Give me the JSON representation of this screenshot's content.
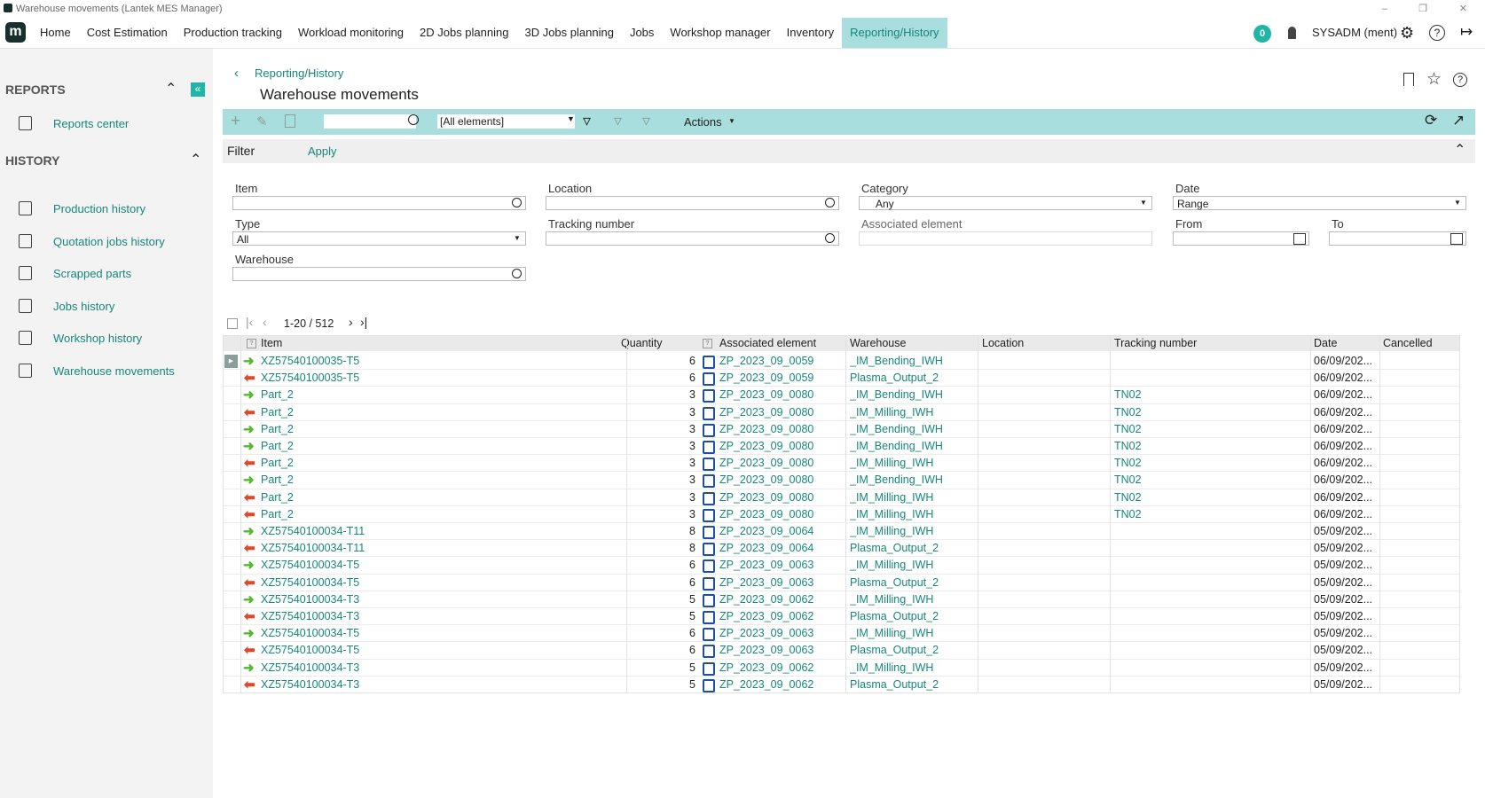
{
  "window": {
    "title": "Warehouse movements (Lantek MES Manager)"
  },
  "menu": {
    "logo": "m",
    "items": [
      "Home",
      "Cost Estimation",
      "Production tracking",
      "Workload monitoring",
      "2D Jobs planning",
      "3D Jobs planning",
      "Jobs",
      "Workshop manager",
      "Inventory",
      "Reporting/History"
    ],
    "notifications": 0,
    "user": "SYSADM (ment)"
  },
  "sidebar": {
    "reports": {
      "heading": "REPORTS",
      "items": [
        "Reports center"
      ]
    },
    "history": {
      "heading": "HISTORY",
      "items": [
        "Production history",
        "Quotation jobs history",
        "Scrapped parts",
        "Jobs history",
        "Workshop history",
        "Warehouse movements"
      ]
    }
  },
  "header": {
    "breadcrumb": "Reporting/History",
    "title": "Warehouse movements"
  },
  "toolbar": {
    "scope": "[All elements]",
    "actions": "Actions"
  },
  "filter": {
    "title": "Filter",
    "apply": "Apply",
    "fields": [
      {
        "label": "Item"
      },
      {
        "label": "Location"
      },
      {
        "label": "Category",
        "value": "Any"
      },
      {
        "label": "Date",
        "value": "Range"
      },
      {
        "label": "Type",
        "value": "All"
      },
      {
        "label": "Tracking number"
      },
      {
        "label": "Associated element"
      },
      {
        "label": "From"
      },
      {
        "label": "To"
      },
      {
        "label": "Warehouse"
      }
    ]
  },
  "pager": "1-20 / 512",
  "table": {
    "columns": [
      "Item",
      "Quantity",
      "Associated element",
      "Warehouse",
      "Location",
      "Tracking number",
      "Date",
      "Cancelled"
    ],
    "rows": [
      {
        "direction": "in",
        "cells": [
          "XZ57540100035-T5",
          6,
          "ZP_2023_09_0059",
          "_IM_Bending_IWH",
          null,
          null,
          "06/09/202...",
          null
        ]
      },
      {
        "direction": "out",
        "cells": [
          "XZ57540100035-T5",
          6,
          "ZP_2023_09_0059",
          "Plasma_Output_2",
          null,
          null,
          "06/09/202...",
          null
        ]
      },
      {
        "direction": "in",
        "cells": [
          "Part_2",
          3,
          "ZP_2023_09_0080",
          "_IM_Bending_IWH",
          null,
          "TN02",
          "06/09/202...",
          null
        ]
      },
      {
        "direction": "out",
        "cells": [
          "Part_2",
          3,
          "ZP_2023_09_0080",
          "_IM_Milling_IWH",
          null,
          "TN02",
          "06/09/202...",
          null
        ]
      },
      {
        "direction": "in",
        "cells": [
          "Part_2",
          3,
          "ZP_2023_09_0080",
          "_IM_Bending_IWH",
          null,
          "TN02",
          "06/09/202...",
          null
        ]
      },
      {
        "direction": "in",
        "cells": [
          "Part_2",
          3,
          "ZP_2023_09_0080",
          "_IM_Bending_IWH",
          null,
          "TN02",
          "06/09/202...",
          null
        ]
      },
      {
        "direction": "out",
        "cells": [
          "Part_2",
          3,
          "ZP_2023_09_0080",
          "_IM_Milling_IWH",
          null,
          "TN02",
          "06/09/202...",
          null
        ]
      },
      {
        "direction": "in",
        "cells": [
          "Part_2",
          3,
          "ZP_2023_09_0080",
          "_IM_Bending_IWH",
          null,
          "TN02",
          "06/09/202...",
          null
        ]
      },
      {
        "direction": "out",
        "cells": [
          "Part_2",
          3,
          "ZP_2023_09_0080",
          "_IM_Milling_IWH",
          null,
          "TN02",
          "06/09/202...",
          null
        ]
      },
      {
        "direction": "out",
        "cells": [
          "Part_2",
          3,
          "ZP_2023_09_0080",
          "_IM_Milling_IWH",
          null,
          "TN02",
          "06/09/202...",
          null
        ]
      },
      {
        "direction": "in",
        "cells": [
          "XZ57540100034-T11",
          8,
          "ZP_2023_09_0064",
          "_IM_Milling_IWH",
          null,
          null,
          "05/09/202...",
          null
        ]
      },
      {
        "direction": "out",
        "cells": [
          "XZ57540100034-T11",
          8,
          "ZP_2023_09_0064",
          "Plasma_Output_2",
          null,
          null,
          "05/09/202...",
          null
        ]
      },
      {
        "direction": "in",
        "cells": [
          "XZ57540100034-T5",
          6,
          "ZP_2023_09_0063",
          "_IM_Milling_IWH",
          null,
          null,
          "05/09/202...",
          null
        ]
      },
      {
        "direction": "out",
        "cells": [
          "XZ57540100034-T5",
          6,
          "ZP_2023_09_0063",
          "Plasma_Output_2",
          null,
          null,
          "05/09/202...",
          null
        ]
      },
      {
        "direction": "in",
        "cells": [
          "XZ57540100034-T3",
          5,
          "ZP_2023_09_0062",
          "_IM_Milling_IWH",
          null,
          null,
          "05/09/202...",
          null
        ]
      },
      {
        "direction": "out",
        "cells": [
          "XZ57540100034-T3",
          5,
          "ZP_2023_09_0062",
          "Plasma_Output_2",
          null,
          null,
          "05/09/202...",
          null
        ]
      },
      {
        "direction": "in",
        "cells": [
          "XZ57540100034-T5",
          6,
          "ZP_2023_09_0063",
          "_IM_Milling_IWH",
          null,
          null,
          "05/09/202...",
          null
        ]
      },
      {
        "direction": "out",
        "cells": [
          "XZ57540100034-T5",
          6,
          "ZP_2023_09_0063",
          "Plasma_Output_2",
          null,
          null,
          "05/09/202...",
          null
        ]
      },
      {
        "direction": "in",
        "cells": [
          "XZ57540100034-T3",
          5,
          "ZP_2023_09_0062",
          "_IM_Milling_IWH",
          null,
          null,
          "05/09/202...",
          null
        ]
      },
      {
        "direction": "out",
        "cells": [
          "XZ57540100034-T3",
          5,
          "ZP_2023_09_0062",
          "Plasma_Output_2",
          null,
          null,
          "05/09/202...",
          null
        ]
      }
    ]
  }
}
